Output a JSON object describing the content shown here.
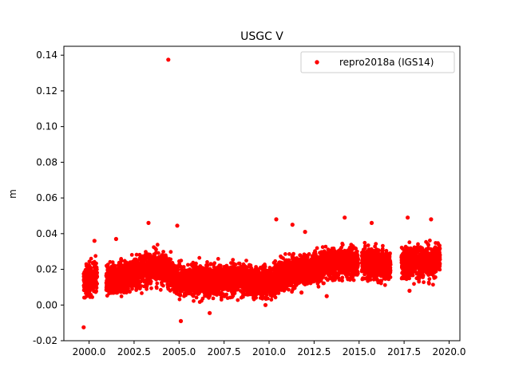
{
  "chart_data": {
    "type": "scatter",
    "title": "USGC V",
    "xlabel": "",
    "ylabel": "m",
    "xlim": [
      1998.6,
      2020.6
    ],
    "ylim": [
      -0.02,
      0.145
    ],
    "x_ticks": [
      "2000.0",
      "2002.5",
      "2005.0",
      "2007.5",
      "2010.0",
      "2012.5",
      "2015.0",
      "2017.5",
      "2020.0"
    ],
    "y_ticks": [
      "-0.02",
      "0.00",
      "0.02",
      "0.04",
      "0.06",
      "0.08",
      "0.10",
      "0.12",
      "0.14"
    ],
    "grid": false,
    "legend_position": "top-right",
    "series": [
      {
        "name": "repro2018a (IGS14)",
        "color": "#ff0000",
        "marker": "circle",
        "trend": [
          [
            1999.7,
            0.012
          ],
          [
            2000.5,
            0.017
          ],
          [
            2001.0,
            0.013
          ],
          [
            2002.0,
            0.016
          ],
          [
            2003.0,
            0.02
          ],
          [
            2004.0,
            0.021
          ],
          [
            2005.0,
            0.014
          ],
          [
            2006.0,
            0.013
          ],
          [
            2007.0,
            0.014
          ],
          [
            2008.0,
            0.015
          ],
          [
            2009.0,
            0.013
          ],
          [
            2010.0,
            0.013
          ],
          [
            2011.0,
            0.018
          ],
          [
            2012.0,
            0.02
          ],
          [
            2013.0,
            0.022
          ],
          [
            2014.0,
            0.024
          ],
          [
            2015.0,
            0.024
          ],
          [
            2016.0,
            0.023
          ],
          [
            2017.0,
            0.022
          ],
          [
            2018.0,
            0.025
          ],
          [
            2019.0,
            0.023
          ],
          [
            2019.5,
            0.027
          ]
        ],
        "spread": 0.007,
        "gaps": [
          [
            2000.45,
            2000.95
          ],
          [
            2014.95,
            2015.15
          ],
          [
            2016.75,
            2017.35
          ]
        ],
        "outliers": [
          [
            2004.4,
            0.1375
          ],
          [
            1999.7,
            -0.0125
          ],
          [
            2004.9,
            0.0445
          ],
          [
            2005.1,
            -0.009
          ],
          [
            2003.3,
            0.046
          ],
          [
            2010.4,
            0.048
          ],
          [
            2014.2,
            0.049
          ],
          [
            2017.7,
            0.049
          ],
          [
            2019.0,
            0.048
          ],
          [
            2015.7,
            0.046
          ],
          [
            2011.3,
            0.045
          ],
          [
            2012.0,
            0.041
          ],
          [
            2001.5,
            0.037
          ],
          [
            2000.3,
            0.036
          ],
          [
            2006.7,
            -0.0045
          ],
          [
            2013.2,
            0.005
          ],
          [
            2017.8,
            0.008
          ],
          [
            2011.8,
            0.007
          ],
          [
            2009.8,
            0.0
          ]
        ]
      }
    ]
  }
}
